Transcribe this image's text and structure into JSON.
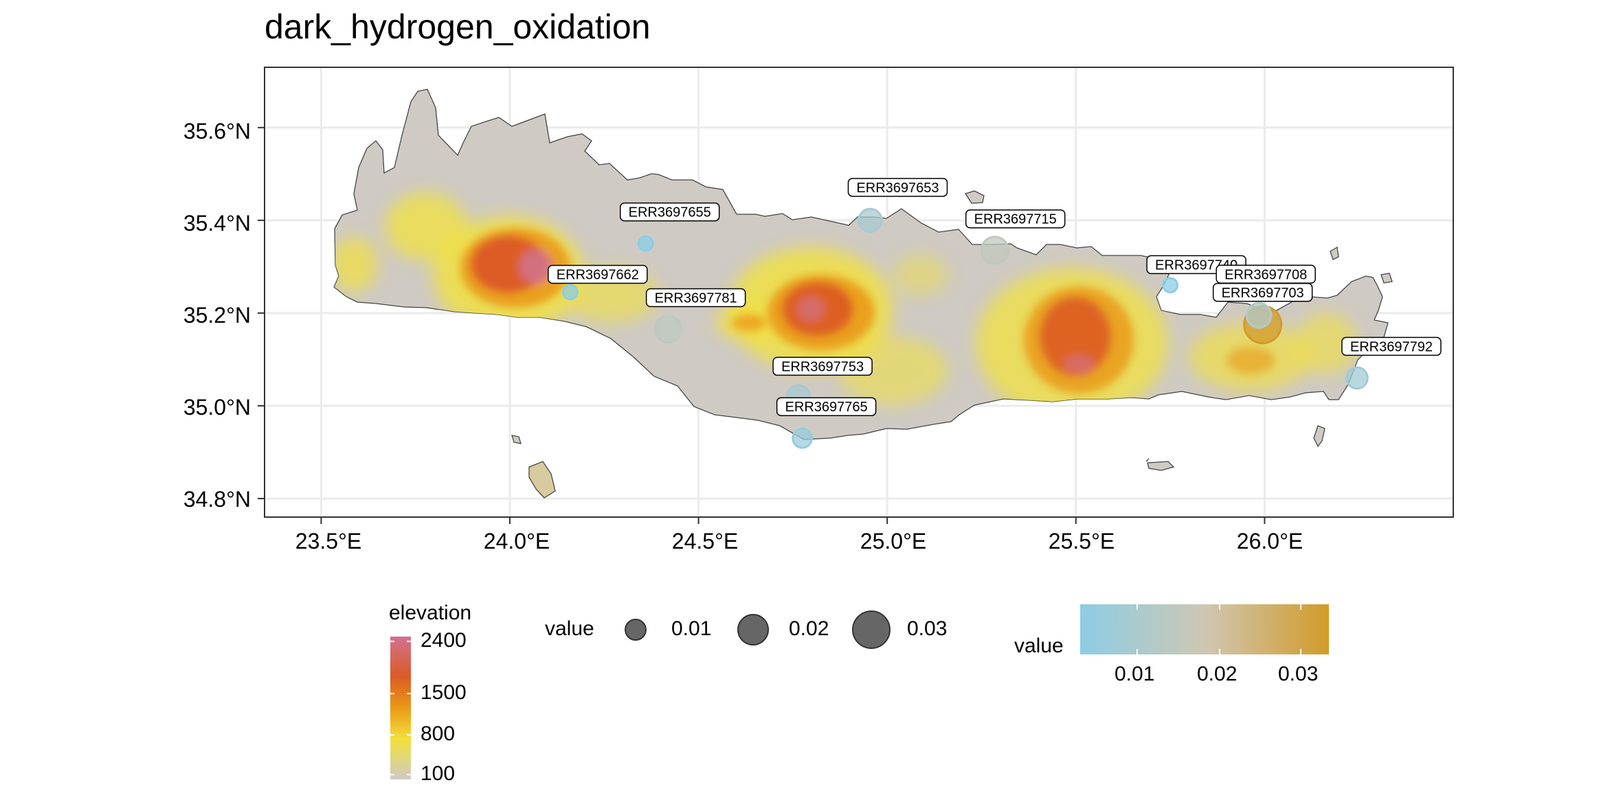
{
  "title": "dark_hydrogen_oxidation",
  "map": {
    "region": "Crete",
    "lon_range": [
      23.35,
      26.5
    ],
    "lat_range": [
      34.76,
      35.73
    ],
    "x_ticks": [
      "23.5°E",
      "24.0°E",
      "24.5°E",
      "25.0°E",
      "25.5°E",
      "26.0°E"
    ],
    "y_ticks": [
      "35.6°N",
      "35.4°N",
      "35.2°N",
      "35.0°N",
      "34.8°N"
    ],
    "grid": true
  },
  "samples": [
    {
      "id": "ERR3697655",
      "lon": 24.36,
      "lat": 35.35,
      "value": 0.001
    },
    {
      "id": "ERR3697662",
      "lon": 24.16,
      "lat": 35.245,
      "value": 0.001
    },
    {
      "id": "ERR3697781",
      "lon": 24.42,
      "lat": 35.165,
      "value": 0.013
    },
    {
      "id": "ERR3697653",
      "lon": 24.955,
      "lat": 35.4,
      "value": 0.008
    },
    {
      "id": "ERR3697715",
      "lon": 25.285,
      "lat": 35.335,
      "value": 0.014
    },
    {
      "id": "ERR3697740",
      "lon": 25.75,
      "lat": 35.26,
      "value": 0.001
    },
    {
      "id": "ERR3697708",
      "lon": 25.985,
      "lat": 35.195,
      "value": 0.01
    },
    {
      "id": "ERR3697703",
      "lon": 25.995,
      "lat": 35.175,
      "value": 0.034
    },
    {
      "id": "ERR3697792",
      "lon": 26.245,
      "lat": 35.06,
      "value": 0.006
    },
    {
      "id": "ERR3697753",
      "lon": 24.765,
      "lat": 35.02,
      "value": 0.008
    },
    {
      "id": "ERR3697765",
      "lon": 24.775,
      "lat": 34.93,
      "value": 0.004
    }
  ],
  "legend_elevation": {
    "title": "elevation",
    "labels": [
      "2400",
      "1500",
      "800",
      "100"
    ],
    "colors": [
      "#d1728f",
      "#dc5a25",
      "#ea9a16",
      "#f2e13c",
      "#cfcac4"
    ]
  },
  "legend_size": {
    "title": "value",
    "labels": [
      "0.01",
      "0.02",
      "0.03"
    ]
  },
  "legend_color": {
    "title": "value",
    "labels": [
      "0.01",
      "0.02",
      "0.03"
    ],
    "colors": [
      "#8ccde5",
      "#cfc7b3",
      "#d29b2a"
    ]
  }
}
